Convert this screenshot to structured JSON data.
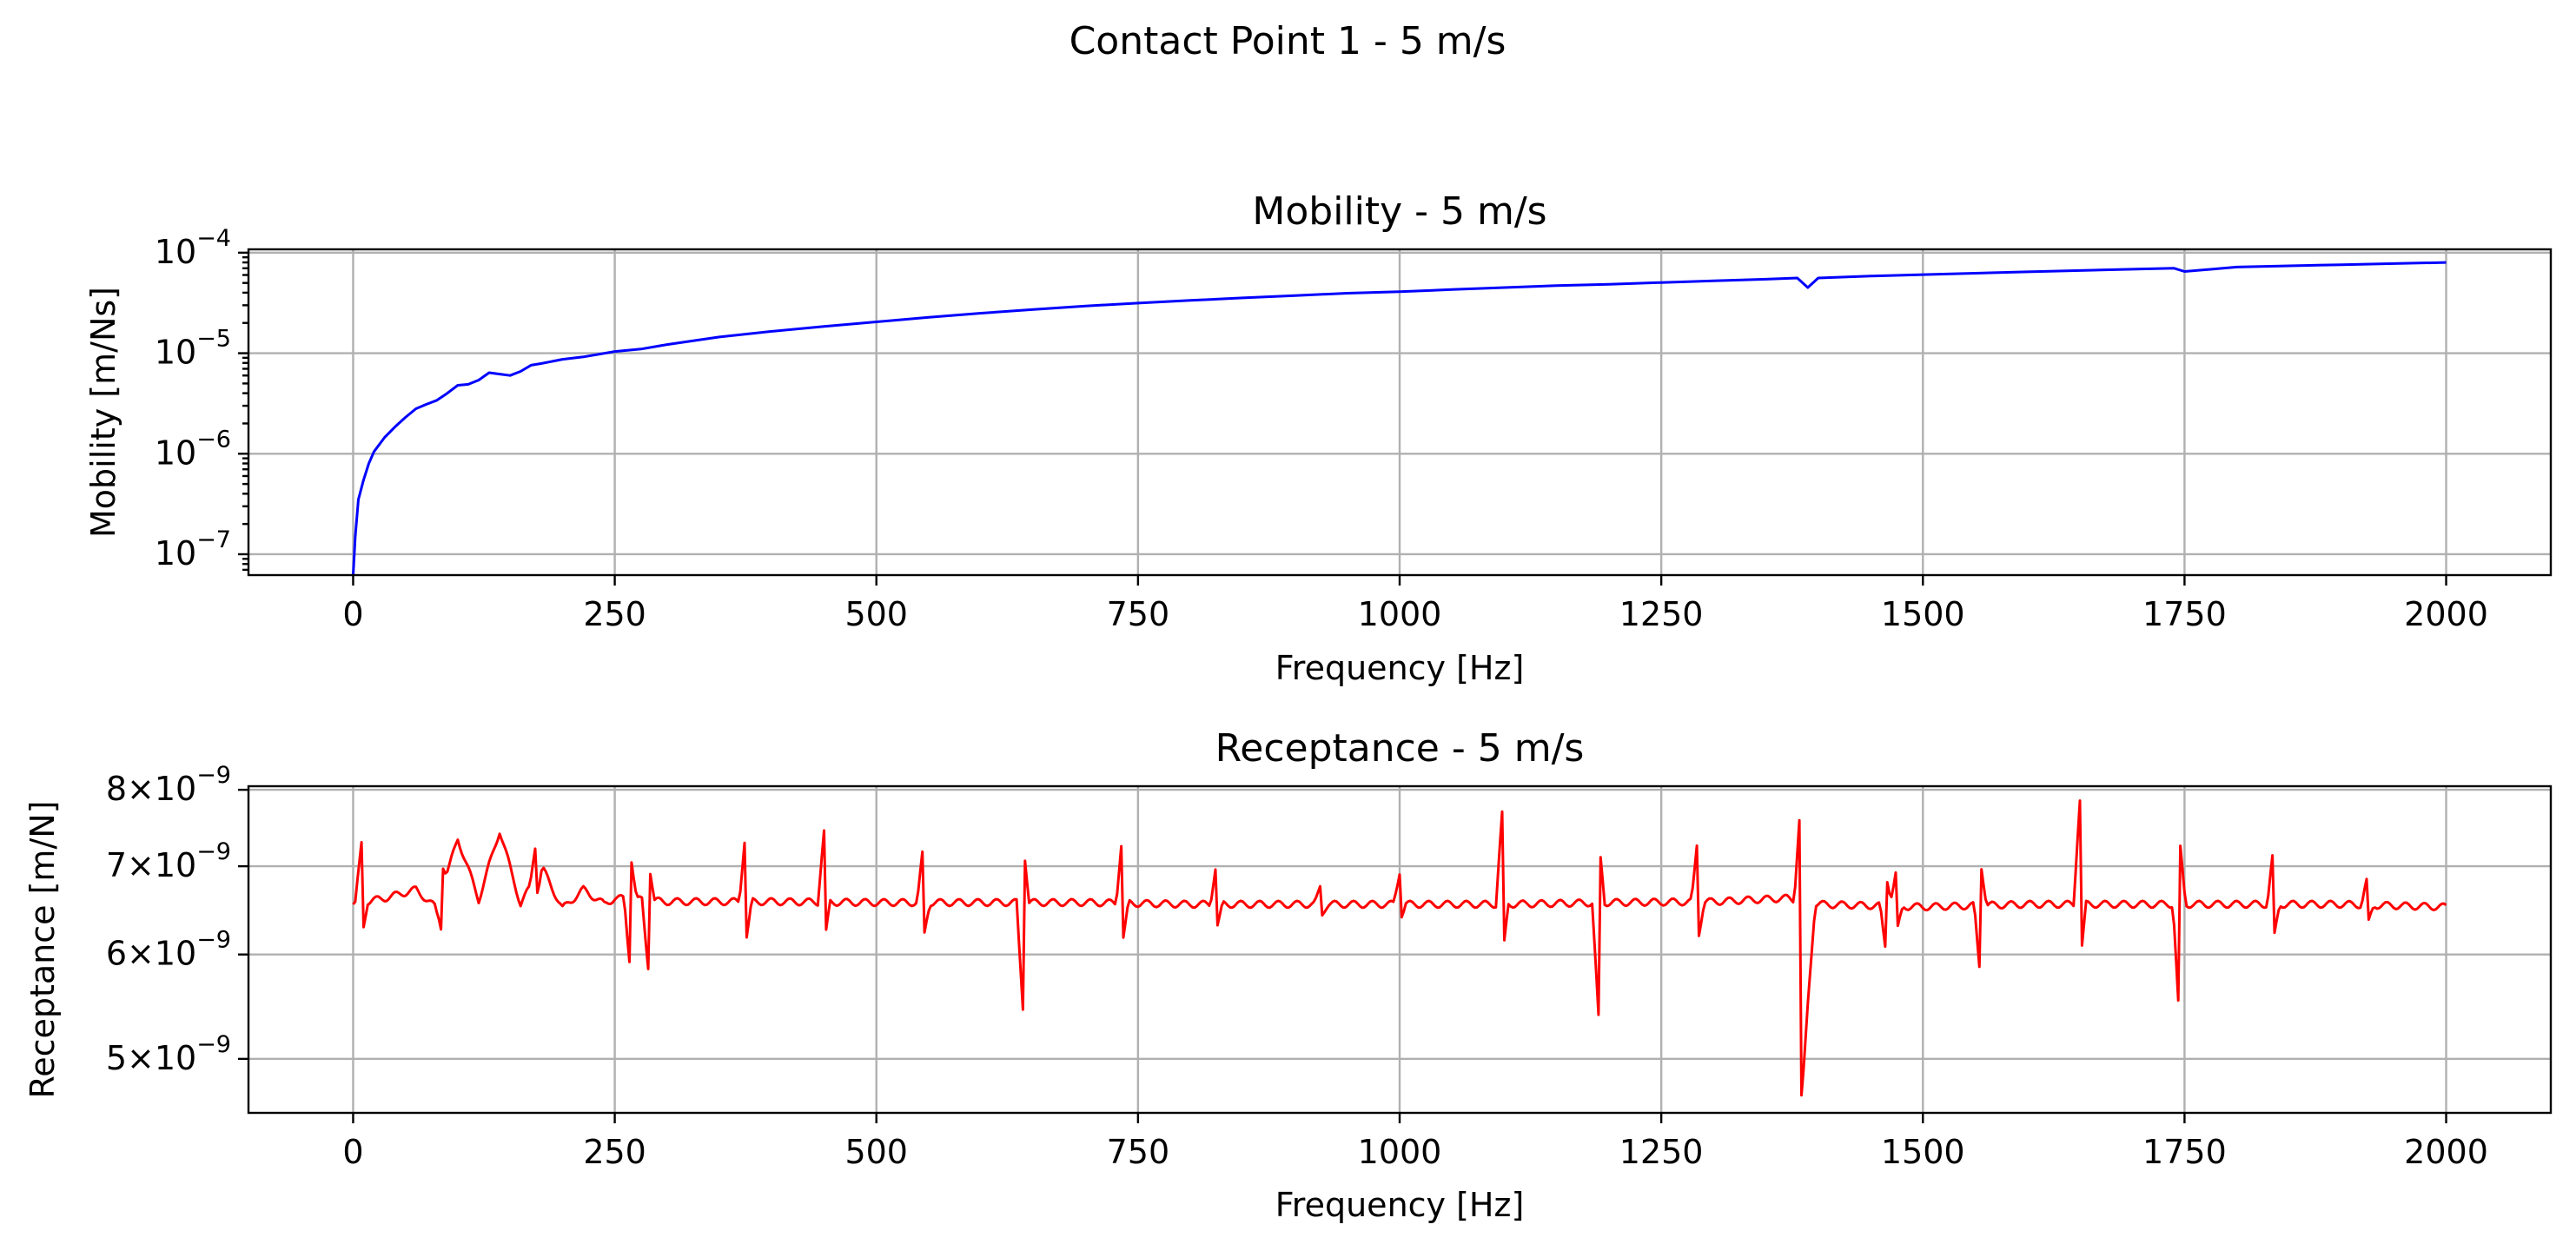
{
  "figure": {
    "suptitle": "Contact Point 1 - 5 m/s"
  },
  "chart_data": [
    {
      "type": "line",
      "title": "Mobility - 5 m/s",
      "xlabel": "Frequency [Hz]",
      "ylabel": "Mobility [m/Ns]",
      "xscale": "linear",
      "yscale": "log",
      "xlim": [
        -100,
        2100
      ],
      "ylim": [
        6.2e-08,
        0.000108
      ],
      "xticks": [
        0,
        250,
        500,
        750,
        1000,
        1250,
        1500,
        1750,
        2000
      ],
      "xtick_labels": [
        "0",
        "250",
        "500",
        "750",
        "1000",
        "1250",
        "1500",
        "1750",
        "2000"
      ],
      "yticks": [
        1e-07,
        1e-06,
        1e-05,
        0.0001
      ],
      "ytick_labels": [
        {
          "base": "10",
          "exp": "−7"
        },
        {
          "base": "10",
          "exp": "−6"
        },
        {
          "base": "10",
          "exp": "−5"
        },
        {
          "base": "10",
          "exp": "−4"
        }
      ],
      "grid": true,
      "series": [
        {
          "color": "#0000ff",
          "x": [
            0,
            2,
            5,
            10,
            15,
            20,
            30,
            40,
            50,
            60,
            70,
            80,
            90,
            100,
            110,
            120,
            130,
            140,
            150,
            160,
            170,
            180,
            200,
            220,
            250,
            275,
            300,
            350,
            400,
            450,
            500,
            550,
            600,
            650,
            700,
            750,
            800,
            850,
            900,
            950,
            1000,
            1050,
            1100,
            1150,
            1200,
            1250,
            1300,
            1350,
            1380,
            1390,
            1400,
            1450,
            1500,
            1550,
            1600,
            1650,
            1700,
            1740,
            1750,
            1800,
            1850,
            1900,
            1950,
            2000
          ],
          "y": [
            6.2e-08,
            1.5e-07,
            3.5e-07,
            5.5e-07,
            8e-07,
            1.05e-06,
            1.45e-06,
            1.85e-06,
            2.3e-06,
            2.8e-06,
            3.1e-06,
            3.4e-06,
            4e-06,
            4.8e-06,
            4.9e-06,
            5.4e-06,
            6.4e-06,
            6.2e-06,
            6e-06,
            6.6e-06,
            7.6e-06,
            7.9e-06,
            8.7e-06,
            9.2e-06,
            1.04e-05,
            1.1e-05,
            1.22e-05,
            1.45e-05,
            1.65e-05,
            1.85e-05,
            2.05e-05,
            2.28e-05,
            2.5e-05,
            2.72e-05,
            2.95e-05,
            3.15e-05,
            3.35e-05,
            3.55e-05,
            3.75e-05,
            3.95e-05,
            4.1e-05,
            4.3e-05,
            4.5e-05,
            4.7e-05,
            4.85e-05,
            5.05e-05,
            5.25e-05,
            5.45e-05,
            5.6e-05,
            4.5e-05,
            5.6e-05,
            5.85e-05,
            6.05e-05,
            6.25e-05,
            6.45e-05,
            6.65e-05,
            6.85e-05,
            7e-05,
            6.5e-05,
            7.2e-05,
            7.4e-05,
            7.6e-05,
            7.8e-05,
            8e-05
          ]
        }
      ]
    },
    {
      "type": "line",
      "title": "Receptance - 5 m/s",
      "xlabel": "Frequency [Hz]",
      "ylabel": "Receptance [m/N]",
      "xscale": "linear",
      "yscale": "log",
      "xlim": [
        -100,
        2100
      ],
      "ylim": [
        4.55e-09,
        8.05e-09
      ],
      "xticks": [
        0,
        250,
        500,
        750,
        1000,
        1250,
        1500,
        1750,
        2000
      ],
      "xtick_labels": [
        "0",
        "250",
        "500",
        "750",
        "1000",
        "1250",
        "1500",
        "1750",
        "2000"
      ],
      "yticks": [
        5e-09,
        6e-09,
        7e-09,
        8e-09
      ],
      "ytick_labels": [
        {
          "base": "5×10",
          "exp": "−9"
        },
        {
          "base": "6×10",
          "exp": "−9"
        },
        {
          "base": "7×10",
          "exp": "−9"
        },
        {
          "base": "8×10",
          "exp": "−9"
        }
      ],
      "grid": true,
      "series": [
        {
          "color": "#ff0000",
          "base_x": [
            0,
            30,
            60,
            80,
            100,
            120,
            140,
            160,
            180,
            200,
            220,
            240,
            250,
            300,
            400,
            500,
            600,
            700,
            800,
            900,
            1000,
            1100,
            1200,
            1300,
            1370,
            1400,
            1500,
            1600,
            1700,
            1800,
            1900,
            2000
          ],
          "base_y": [
            6.55e-09,
            6.62e-09,
            6.72e-09,
            6.5e-09,
            7.35e-09,
            6.6e-09,
            7.45e-09,
            6.55e-09,
            7e-09,
            6.5e-09,
            6.72e-09,
            6.55e-09,
            6.62e-09,
            6.58e-09,
            6.58e-09,
            6.57e-09,
            6.57e-09,
            6.57e-09,
            6.55e-09,
            6.55e-09,
            6.55e-09,
            6.55e-09,
            6.57e-09,
            6.58e-09,
            6.62e-09,
            6.55e-09,
            6.52e-09,
            6.55e-09,
            6.55e-09,
            6.55e-09,
            6.55e-09,
            6.52e-09
          ],
          "spikes_x": [
            8,
            85,
            175,
            265,
            282,
            375,
            450,
            545,
            640,
            735,
            825,
            925,
            1000,
            1098,
            1190,
            1285,
            1383,
            1465,
            1475,
            1555,
            1650,
            1745,
            1835,
            1925
          ],
          "spikes_y": [
            7.3e-09,
            6.2e-09,
            7.3e-09,
            5.8e-09,
            5.85e-09,
            7.45e-09,
            7.45e-09,
            7.3e-09,
            5.45e-09,
            7.4e-09,
            7.05e-09,
            6.8e-09,
            6.9e-09,
            7.7e-09,
            5.4e-09,
            7.4e-09,
            7.8e-09,
            6e-09,
            7e-09,
            5.75e-09,
            7.85e-09,
            5.35e-09,
            7.25e-09,
            6.9e-09
          ],
          "deep_dip": {
            "x": 1383,
            "y": 4.6e-09
          }
        }
      ]
    }
  ]
}
